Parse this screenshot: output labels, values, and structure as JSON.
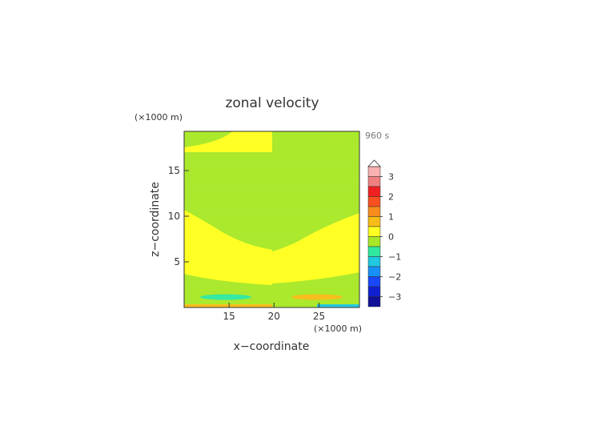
{
  "chart_data": {
    "type": "heatmap",
    "title": "zonal velocity",
    "time_label": "960 s",
    "xlabel": "x−coordinate",
    "ylabel": "z−coordinate",
    "x_unit": "(×1000 m)",
    "y_unit": "(×1000 m)",
    "xlim": [
      10,
      29.5
    ],
    "ylim": [
      0,
      19.3
    ],
    "x_ticks": [
      15,
      20,
      25
    ],
    "y_ticks": [
      5,
      10,
      15
    ],
    "colorbar": {
      "ticks": [
        3,
        2,
        1,
        0,
        -1,
        -2,
        -3
      ],
      "levels": [
        {
          "from": 3.0,
          "to": 3.5,
          "color": "#f8b0b0"
        },
        {
          "from": 2.5,
          "to": 3.0,
          "color": "#f08080"
        },
        {
          "from": 2.0,
          "to": 2.5,
          "color": "#f02020"
        },
        {
          "from": 1.5,
          "to": 2.0,
          "color": "#f85020"
        },
        {
          "from": 1.0,
          "to": 1.5,
          "color": "#f88c1c"
        },
        {
          "from": 0.5,
          "to": 1.0,
          "color": "#f8bc18"
        },
        {
          "from": 0.0,
          "to": 0.5,
          "color": "#ffff20"
        },
        {
          "from": -0.5,
          "to": 0.0,
          "color": "#a8e828"
        },
        {
          "from": -1.0,
          "to": -0.5,
          "color": "#30e8a0"
        },
        {
          "from": -1.5,
          "to": -1.0,
          "color": "#20c8e0"
        },
        {
          "from": -2.0,
          "to": -1.5,
          "color": "#1890f8"
        },
        {
          "from": -2.5,
          "to": -2.0,
          "color": "#1848f8"
        },
        {
          "from": -3.0,
          "to": -2.5,
          "color": "#1020d0"
        },
        {
          "from": -3.5,
          "to": -3.0,
          "color": "#101098"
        }
      ],
      "extend_top": true
    },
    "regions": [
      {
        "name": "left-top-cap",
        "color": "#a8e828"
      },
      {
        "name": "left-upper-band",
        "color": "#a8e828"
      },
      {
        "name": "left-lower-band",
        "color": "#a8e828"
      },
      {
        "name": "left-negative-cell",
        "color": "#30e8a0"
      },
      {
        "name": "left-bottom-strip",
        "color": "#f8bc18"
      },
      {
        "name": "right-top-cap",
        "color": "#a8e828"
      },
      {
        "name": "right-middle-band",
        "color": "#a8e828"
      },
      {
        "name": "right-bottom-band",
        "color": "#a8e828"
      },
      {
        "name": "right-positive-cell",
        "color": "#f8bc18"
      },
      {
        "name": "right-bottom-strip",
        "color": "#20c8e0"
      }
    ]
  }
}
